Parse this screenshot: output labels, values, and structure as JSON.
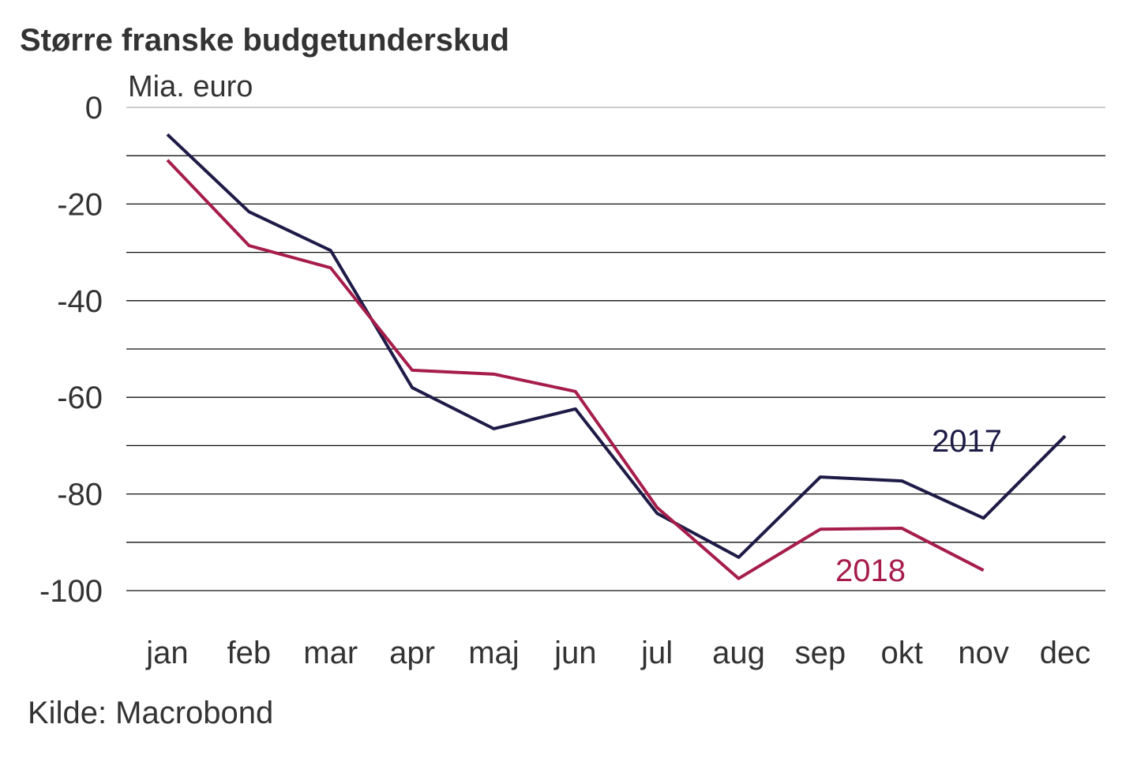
{
  "chart_data": {
    "type": "line",
    "title": "Større franske budgetunderskud",
    "ylabel": "Mia. euro",
    "xlabel": "",
    "source": "Kilde: Macrobond",
    "categories": [
      "jan",
      "feb",
      "mar",
      "apr",
      "maj",
      "jun",
      "jul",
      "aug",
      "sep",
      "okt",
      "nov",
      "dec"
    ],
    "ylim": [
      -100,
      0
    ],
    "yticks": [
      0,
      -20,
      -40,
      -60,
      -80,
      -100
    ],
    "ytick_labels": [
      "0",
      "-20",
      "-40",
      "-60",
      "-80",
      "-100"
    ],
    "grid": true,
    "gridline_step": 10,
    "series": [
      {
        "name": "2017",
        "color": "#1e1b47",
        "values": [
          -5.6,
          -21.6,
          -29.6,
          -58.0,
          -66.5,
          -62.4,
          -84.0,
          -93.1,
          -76.5,
          -77.3,
          -85.0,
          -68.0
        ]
      },
      {
        "name": "2018",
        "color": "#a61d4b",
        "values": [
          -10.9,
          -28.6,
          -33.2,
          -54.4,
          -55.2,
          -58.8,
          -82.8,
          -97.5,
          -87.3,
          -87.1,
          -95.8,
          null
        ]
      }
    ]
  }
}
